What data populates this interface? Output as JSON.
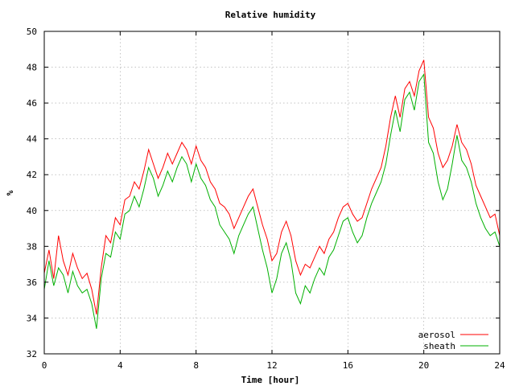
{
  "chart_data": {
    "type": "line",
    "title": "Relative humidity",
    "xlabel": "Time [hour]",
    "ylabel": "%",
    "xlim": [
      0,
      24
    ],
    "ylim": [
      32,
      50
    ],
    "xticks": [
      0,
      4,
      8,
      12,
      16,
      20,
      24
    ],
    "yticks": [
      32,
      34,
      36,
      38,
      40,
      42,
      44,
      46,
      48,
      50
    ],
    "grid": true,
    "legend": "bottom-right",
    "series": [
      {
        "name": "aerosol",
        "color": "#ff0000",
        "x": [
          0,
          0.25,
          0.5,
          0.75,
          1,
          1.25,
          1.5,
          1.75,
          2,
          2.25,
          2.5,
          2.75,
          3,
          3.25,
          3.5,
          3.75,
          4,
          4.25,
          4.5,
          4.75,
          5,
          5.25,
          5.5,
          5.75,
          6,
          6.25,
          6.5,
          6.75,
          7,
          7.25,
          7.5,
          7.75,
          8,
          8.25,
          8.5,
          8.75,
          9,
          9.25,
          9.5,
          9.75,
          10,
          10.25,
          10.5,
          10.75,
          11,
          11.25,
          11.5,
          11.75,
          12,
          12.25,
          12.5,
          12.75,
          13,
          13.25,
          13.5,
          13.75,
          14,
          14.25,
          14.5,
          14.75,
          15,
          15.25,
          15.5,
          15.75,
          16,
          16.25,
          16.5,
          16.75,
          17,
          17.25,
          17.5,
          17.75,
          18,
          18.25,
          18.5,
          18.75,
          19,
          19.25,
          19.5,
          19.75,
          20,
          20.25,
          20.5,
          20.75,
          21,
          21.25,
          21.5,
          21.75,
          22,
          22.25,
          22.5,
          22.75,
          23,
          23.25,
          23.5,
          23.75,
          24
        ],
        "y": [
          36.5,
          37.8,
          36.2,
          38.6,
          37.2,
          36.4,
          37.6,
          36.8,
          36.2,
          36.5,
          35.6,
          34.2,
          36.8,
          38.6,
          38.2,
          39.6,
          39.2,
          40.6,
          40.8,
          41.6,
          41.2,
          42.2,
          43.4,
          42.6,
          41.8,
          42.4,
          43.2,
          42.6,
          43.2,
          43.8,
          43.4,
          42.6,
          43.6,
          42.8,
          42.4,
          41.6,
          41.2,
          40.4,
          40.2,
          39.8,
          39.0,
          39.6,
          40.2,
          40.8,
          41.2,
          40.2,
          39.2,
          38.4,
          37.2,
          37.6,
          38.8,
          39.4,
          38.6,
          37.2,
          36.4,
          37.0,
          36.8,
          37.4,
          38.0,
          37.6,
          38.4,
          38.8,
          39.6,
          40.2,
          40.4,
          39.8,
          39.4,
          39.6,
          40.4,
          41.2,
          41.8,
          42.4,
          43.6,
          45.2,
          46.4,
          45.2,
          46.8,
          47.2,
          46.4,
          47.8,
          48.4,
          45.2,
          44.6,
          43.2,
          42.4,
          42.8,
          43.6,
          44.8,
          43.8,
          43.4,
          42.6,
          41.4,
          40.8,
          40.2,
          39.6,
          39.8,
          38.6
        ]
      },
      {
        "name": "sheath",
        "color": "#00b000",
        "x": [
          0,
          0.25,
          0.5,
          0.75,
          1,
          1.25,
          1.5,
          1.75,
          2,
          2.25,
          2.5,
          2.75,
          3,
          3.25,
          3.5,
          3.75,
          4,
          4.25,
          4.5,
          4.75,
          5,
          5.25,
          5.5,
          5.75,
          6,
          6.25,
          6.5,
          6.75,
          7,
          7.25,
          7.5,
          7.75,
          8,
          8.25,
          8.5,
          8.75,
          9,
          9.25,
          9.5,
          9.75,
          10,
          10.25,
          10.5,
          10.75,
          11,
          11.25,
          11.5,
          11.75,
          12,
          12.25,
          12.5,
          12.75,
          13,
          13.25,
          13.5,
          13.75,
          14,
          14.25,
          14.5,
          14.75,
          15,
          15.25,
          15.5,
          15.75,
          16,
          16.25,
          16.5,
          16.75,
          17,
          17.25,
          17.5,
          17.75,
          18,
          18.25,
          18.5,
          18.75,
          19,
          19.25,
          19.5,
          19.75,
          20,
          20.25,
          20.5,
          20.75,
          21,
          21.25,
          21.5,
          21.75,
          22,
          22.25,
          22.5,
          22.75,
          23,
          23.25,
          23.5,
          23.75,
          24
        ],
        "y": [
          35.6,
          37.2,
          35.8,
          36.8,
          36.4,
          35.4,
          36.6,
          35.8,
          35.4,
          35.6,
          34.8,
          33.4,
          36.2,
          37.6,
          37.4,
          38.8,
          38.4,
          39.8,
          40.0,
          40.8,
          40.2,
          41.2,
          42.4,
          41.8,
          40.8,
          41.4,
          42.2,
          41.6,
          42.4,
          43.0,
          42.6,
          41.6,
          42.6,
          41.8,
          41.4,
          40.6,
          40.2,
          39.2,
          38.8,
          38.4,
          37.6,
          38.6,
          39.2,
          39.8,
          40.2,
          39.0,
          37.8,
          36.8,
          35.4,
          36.2,
          37.6,
          38.2,
          37.2,
          35.4,
          34.8,
          35.8,
          35.4,
          36.2,
          36.8,
          36.4,
          37.4,
          37.8,
          38.6,
          39.4,
          39.6,
          38.8,
          38.2,
          38.6,
          39.6,
          40.4,
          41.0,
          41.6,
          42.6,
          44.2,
          45.6,
          44.4,
          46.2,
          46.6,
          45.6,
          47.2,
          47.6,
          43.8,
          43.2,
          41.6,
          40.6,
          41.2,
          42.6,
          44.2,
          42.8,
          42.4,
          41.6,
          40.4,
          39.6,
          39.0,
          38.6,
          38.8,
          38.0
        ]
      }
    ]
  }
}
